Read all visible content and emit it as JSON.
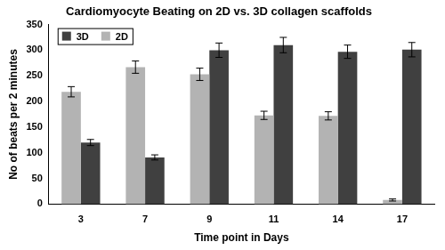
{
  "chart_data": {
    "type": "bar",
    "title": "Cardiomyocyte Beating on 2D vs. 3D collagen scaffolds",
    "x_label": "Time point in Days",
    "y_label": "No of beats per 2 minutes",
    "categories": [
      "3",
      "7",
      "9",
      "11",
      "14",
      "17"
    ],
    "series": [
      {
        "name": "2D",
        "color": "#b3b3b3",
        "values": [
          219,
          267,
          253,
          173,
          172,
          8
        ],
        "errors": [
          10,
          12,
          12,
          8,
          8,
          2
        ]
      },
      {
        "name": "3D",
        "color": "#404040",
        "values": [
          120,
          91,
          300,
          310,
          297,
          301
        ],
        "errors": [
          6,
          5,
          14,
          15,
          13,
          14
        ]
      }
    ],
    "ylim": [
      0,
      350
    ],
    "yticks": [
      0,
      50,
      100,
      150,
      200,
      250,
      300,
      350
    ],
    "grid": false,
    "legend": "upper left"
  }
}
